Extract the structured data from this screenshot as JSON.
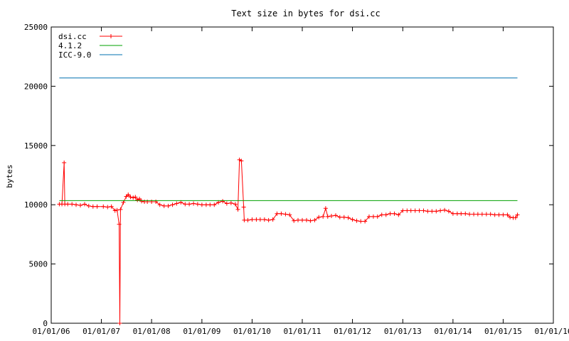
{
  "chart_data": {
    "type": "line",
    "title": "Text size in bytes for dsi.cc",
    "xlabel": "",
    "ylabel": "bytes",
    "ylim": [
      0,
      25000
    ],
    "xlim": [
      "2006-01-01",
      "2016-01-01"
    ],
    "x_axis_type": "date",
    "yticks": [
      0,
      5000,
      10000,
      15000,
      20000,
      25000
    ],
    "ytick_labels": [
      "0",
      "5000",
      "10000",
      "15000",
      "20000",
      "25000"
    ],
    "xticks": [
      "2006-01-01",
      "2007-01-01",
      "2008-01-01",
      "2009-01-01",
      "2010-01-01",
      "2011-01-01",
      "2012-01-01",
      "2013-01-01",
      "2014-01-01",
      "2015-01-01",
      "2016-01-01"
    ],
    "xtick_labels": [
      "01/01/06",
      "01/01/07",
      "01/01/08",
      "01/01/09",
      "01/01/10",
      "01/01/11",
      "01/01/12",
      "01/01/13",
      "01/01/14",
      "01/01/15",
      "01/01/16"
    ],
    "grid": false,
    "legend_position": "top-left",
    "series": [
      {
        "name": "dsi.cc",
        "color": "#ff0000",
        "marker": "plus",
        "points": [
          [
            "2006-03-01",
            10050
          ],
          [
            "2006-03-20",
            10050
          ],
          [
            "2006-04-05",
            13550
          ],
          [
            "2006-04-10",
            10050
          ],
          [
            "2006-05-01",
            10050
          ],
          [
            "2006-06-01",
            10050
          ],
          [
            "2006-07-01",
            10000
          ],
          [
            "2006-08-01",
            9950
          ],
          [
            "2006-09-01",
            10050
          ],
          [
            "2006-10-01",
            9900
          ],
          [
            "2006-11-01",
            9850
          ],
          [
            "2006-12-01",
            9850
          ],
          [
            "2007-01-15",
            9850
          ],
          [
            "2007-02-15",
            9800
          ],
          [
            "2007-03-15",
            9850
          ],
          [
            "2007-04-10",
            9500
          ],
          [
            "2007-04-25",
            9550
          ],
          [
            "2007-05-10",
            8350
          ],
          [
            "2007-05-15",
            0
          ],
          [
            "2007-05-20",
            9600
          ],
          [
            "2007-06-10",
            10200
          ],
          [
            "2007-07-01",
            10700
          ],
          [
            "2007-07-15",
            10850
          ],
          [
            "2007-08-01",
            10650
          ],
          [
            "2007-08-20",
            10600
          ],
          [
            "2007-09-05",
            10650
          ],
          [
            "2007-09-20",
            10400
          ],
          [
            "2007-10-05",
            10500
          ],
          [
            "2007-10-20",
            10300
          ],
          [
            "2007-11-10",
            10250
          ],
          [
            "2007-12-01",
            10250
          ],
          [
            "2008-01-01",
            10250
          ],
          [
            "2008-02-01",
            10250
          ],
          [
            "2008-03-01",
            10000
          ],
          [
            "2008-04-01",
            9900
          ],
          [
            "2008-05-01",
            9900
          ],
          [
            "2008-06-01",
            10000
          ],
          [
            "2008-07-01",
            10100
          ],
          [
            "2008-08-01",
            10200
          ],
          [
            "2008-09-01",
            10050
          ],
          [
            "2008-10-01",
            10050
          ],
          [
            "2008-11-01",
            10100
          ],
          [
            "2008-12-01",
            10050
          ],
          [
            "2009-01-01",
            10000
          ],
          [
            "2009-02-01",
            10000
          ],
          [
            "2009-03-01",
            10000
          ],
          [
            "2009-04-01",
            10000
          ],
          [
            "2009-05-01",
            10200
          ],
          [
            "2009-06-01",
            10300
          ],
          [
            "2009-07-01",
            10100
          ],
          [
            "2009-08-01",
            10150
          ],
          [
            "2009-09-01",
            10050
          ],
          [
            "2009-09-20",
            9600
          ],
          [
            "2009-10-01",
            13800
          ],
          [
            "2009-10-15",
            13700
          ],
          [
            "2009-11-01",
            9800
          ],
          [
            "2009-11-05",
            8700
          ],
          [
            "2009-12-01",
            8700
          ],
          [
            "2010-01-01",
            8750
          ],
          [
            "2010-02-01",
            8750
          ],
          [
            "2010-03-01",
            8750
          ],
          [
            "2010-04-01",
            8750
          ],
          [
            "2010-05-01",
            8700
          ],
          [
            "2010-06-01",
            8750
          ],
          [
            "2010-07-01",
            9250
          ],
          [
            "2010-08-01",
            9250
          ],
          [
            "2010-09-01",
            9200
          ],
          [
            "2010-10-01",
            9150
          ],
          [
            "2010-11-01",
            8650
          ],
          [
            "2010-12-01",
            8700
          ],
          [
            "2011-01-01",
            8700
          ],
          [
            "2011-02-01",
            8700
          ],
          [
            "2011-03-01",
            8650
          ],
          [
            "2011-04-01",
            8700
          ],
          [
            "2011-05-01",
            8950
          ],
          [
            "2011-06-01",
            9000
          ],
          [
            "2011-06-20",
            9700
          ],
          [
            "2011-07-05",
            9000
          ],
          [
            "2011-08-01",
            9050
          ],
          [
            "2011-09-01",
            9100
          ],
          [
            "2011-10-01",
            8950
          ],
          [
            "2011-11-01",
            8950
          ],
          [
            "2011-12-01",
            8900
          ],
          [
            "2012-01-01",
            8750
          ],
          [
            "2012-02-01",
            8650
          ],
          [
            "2012-03-01",
            8600
          ],
          [
            "2012-04-01",
            8600
          ],
          [
            "2012-05-01",
            9000
          ],
          [
            "2012-06-01",
            9000
          ],
          [
            "2012-07-01",
            9000
          ],
          [
            "2012-08-01",
            9150
          ],
          [
            "2012-09-01",
            9150
          ],
          [
            "2012-10-01",
            9250
          ],
          [
            "2012-11-01",
            9250
          ],
          [
            "2012-12-01",
            9150
          ],
          [
            "2013-01-01",
            9500
          ],
          [
            "2013-02-01",
            9500
          ],
          [
            "2013-03-01",
            9500
          ],
          [
            "2013-04-01",
            9500
          ],
          [
            "2013-05-01",
            9500
          ],
          [
            "2013-06-01",
            9500
          ],
          [
            "2013-07-01",
            9450
          ],
          [
            "2013-08-01",
            9450
          ],
          [
            "2013-09-01",
            9450
          ],
          [
            "2013-10-01",
            9500
          ],
          [
            "2013-11-01",
            9550
          ],
          [
            "2013-12-01",
            9450
          ],
          [
            "2014-01-01",
            9250
          ],
          [
            "2014-02-01",
            9250
          ],
          [
            "2014-03-01",
            9250
          ],
          [
            "2014-04-01",
            9250
          ],
          [
            "2014-05-01",
            9200
          ],
          [
            "2014-06-01",
            9200
          ],
          [
            "2014-07-01",
            9200
          ],
          [
            "2014-08-01",
            9200
          ],
          [
            "2014-09-01",
            9200
          ],
          [
            "2014-10-01",
            9200
          ],
          [
            "2014-11-01",
            9150
          ],
          [
            "2014-12-01",
            9150
          ],
          [
            "2015-01-01",
            9150
          ],
          [
            "2015-02-01",
            9150
          ],
          [
            "2015-02-20",
            8950
          ],
          [
            "2015-03-15",
            8900
          ],
          [
            "2015-04-01",
            8900
          ],
          [
            "2015-04-15",
            9150
          ]
        ]
      },
      {
        "name": "4.1.2",
        "color": "#00a000",
        "marker": "none",
        "points": [
          [
            "2006-03-01",
            10350
          ],
          [
            "2015-04-15",
            10350
          ]
        ]
      },
      {
        "name": "ICC-9.0",
        "color": "#0070b0",
        "marker": "none",
        "points": [
          [
            "2006-03-01",
            20700
          ],
          [
            "2015-04-15",
            20700
          ]
        ]
      }
    ]
  }
}
